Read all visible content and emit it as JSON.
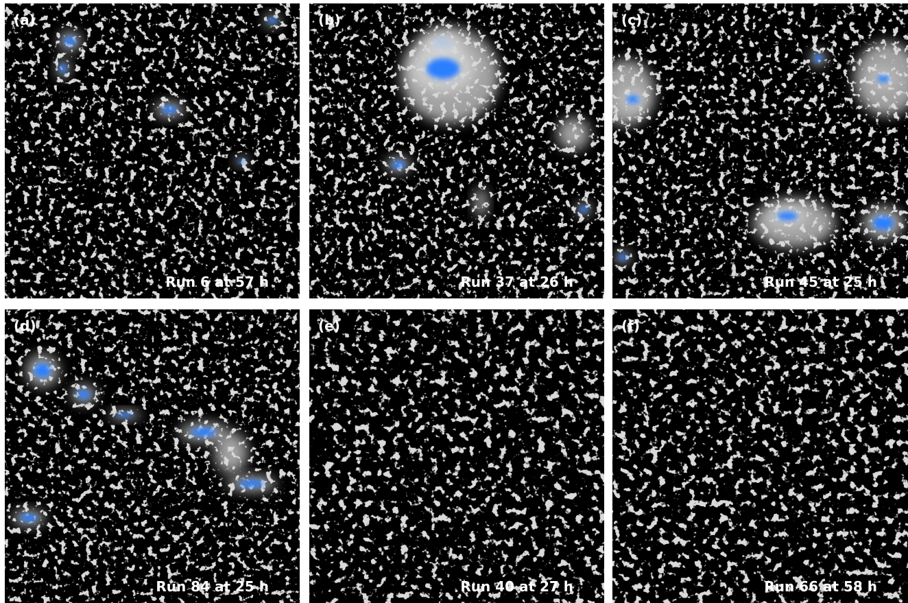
{
  "panels": [
    {
      "label": "(a)",
      "caption": "Run 6 at 57 h"
    },
    {
      "label": "(b)",
      "caption": "Run 37 at 26 h"
    },
    {
      "label": "(c)",
      "caption": "Run 45 at 25 h"
    },
    {
      "label": "(d)",
      "caption": "Run 84 at 25 h"
    },
    {
      "label": "(e)",
      "caption": "Run 40 at 27 h"
    },
    {
      "label": "(f)",
      "caption": "Run 66 at 58 h"
    }
  ]
}
